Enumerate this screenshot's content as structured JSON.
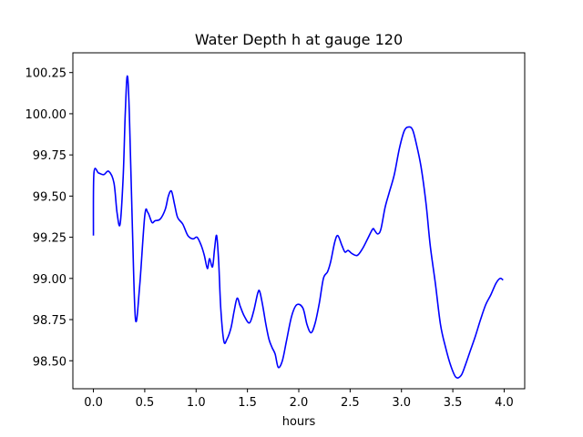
{
  "chart_data": {
    "type": "line",
    "title": "Water Depth h at gauge 120",
    "xlabel": "hours",
    "ylabel": "",
    "xlim": [
      -0.2,
      4.2
    ],
    "ylim": [
      98.33,
      100.37
    ],
    "xticks": [
      0.0,
      0.5,
      1.0,
      1.5,
      2.0,
      2.5,
      3.0,
      3.5,
      4.0
    ],
    "xtick_labels": [
      "0.0",
      "0.5",
      "1.0",
      "1.5",
      "2.0",
      "2.5",
      "3.0",
      "3.5",
      "4.0"
    ],
    "yticks": [
      98.5,
      98.75,
      99.0,
      99.25,
      99.5,
      99.75,
      100.0,
      100.25
    ],
    "ytick_labels": [
      "98.50",
      "98.75",
      "99.00",
      "99.25",
      "99.50",
      "99.75",
      "100.00",
      "100.25"
    ],
    "grid": false,
    "series": [
      {
        "color": "#0000ff",
        "x": [
          0.0,
          0.005,
          0.05,
          0.1,
          0.15,
          0.2,
          0.23,
          0.26,
          0.29,
          0.31,
          0.33,
          0.35,
          0.38,
          0.41,
          0.45,
          0.5,
          0.53,
          0.57,
          0.6,
          0.65,
          0.7,
          0.73,
          0.76,
          0.79,
          0.82,
          0.87,
          0.92,
          0.97,
          1.01,
          1.05,
          1.08,
          1.11,
          1.13,
          1.16,
          1.18,
          1.2,
          1.22,
          1.24,
          1.27,
          1.3,
          1.34,
          1.37,
          1.4,
          1.43,
          1.47,
          1.52,
          1.56,
          1.6,
          1.62,
          1.65,
          1.68,
          1.71,
          1.74,
          1.77,
          1.8,
          1.84,
          1.88,
          1.93,
          1.98,
          2.04,
          2.08,
          2.12,
          2.16,
          2.2,
          2.24,
          2.28,
          2.31,
          2.35,
          2.38,
          2.42,
          2.45,
          2.48,
          2.52,
          2.57,
          2.62,
          2.67,
          2.72,
          2.74,
          2.77,
          2.8,
          2.84,
          2.88,
          2.93,
          2.98,
          3.03,
          3.08,
          3.11,
          3.14,
          3.19,
          3.24,
          3.28,
          3.33,
          3.38,
          3.43,
          3.48,
          3.53,
          3.58,
          3.62,
          3.67,
          3.72,
          3.77,
          3.82,
          3.87,
          3.92,
          3.96,
          3.99
        ],
        "y": [
          99.26,
          99.64,
          99.64,
          99.63,
          99.65,
          99.58,
          99.4,
          99.33,
          99.62,
          100.0,
          100.23,
          100.0,
          99.3,
          98.75,
          98.95,
          99.38,
          99.4,
          99.34,
          99.35,
          99.36,
          99.42,
          99.5,
          99.53,
          99.45,
          99.37,
          99.33,
          99.26,
          99.24,
          99.25,
          99.2,
          99.14,
          99.06,
          99.12,
          99.07,
          99.18,
          99.26,
          99.1,
          98.82,
          98.62,
          98.63,
          98.7,
          98.8,
          98.88,
          98.83,
          98.77,
          98.73,
          98.8,
          98.91,
          98.92,
          98.83,
          98.72,
          98.63,
          98.58,
          98.54,
          98.46,
          98.5,
          98.62,
          98.77,
          98.84,
          98.82,
          98.72,
          98.67,
          98.73,
          98.85,
          99.0,
          99.04,
          99.1,
          99.22,
          99.26,
          99.2,
          99.16,
          99.17,
          99.15,
          99.14,
          99.18,
          99.24,
          99.3,
          99.29,
          99.27,
          99.3,
          99.43,
          99.52,
          99.63,
          99.79,
          99.9,
          99.92,
          99.9,
          99.83,
          99.68,
          99.45,
          99.2,
          98.97,
          98.72,
          98.58,
          98.47,
          98.4,
          98.41,
          98.47,
          98.56,
          98.65,
          98.75,
          98.84,
          98.9,
          98.97,
          99.0,
          98.99
        ]
      }
    ]
  }
}
